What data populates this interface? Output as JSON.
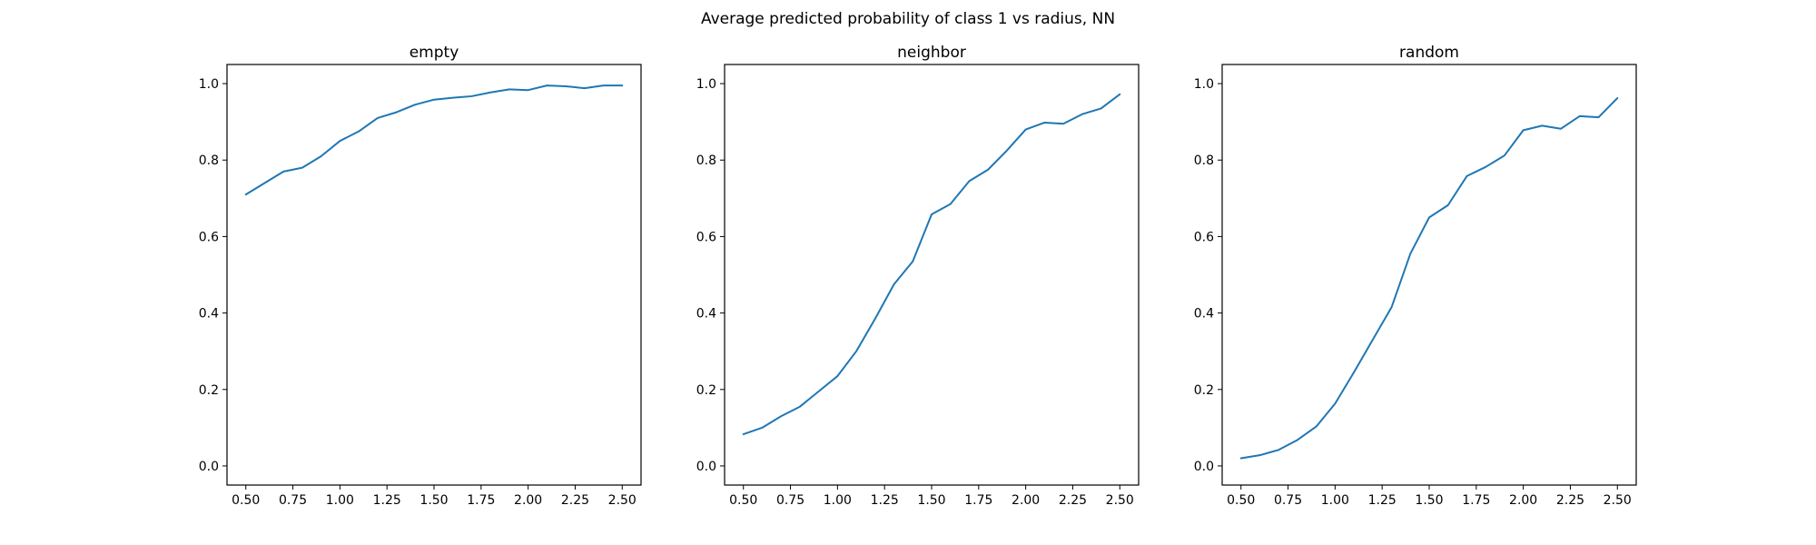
{
  "figure": {
    "suptitle": "Average predicted probability of class 1 vs radius, NN"
  },
  "colors": {
    "series": "#1f77b4",
    "axes": "#000000",
    "background": "#ffffff"
  },
  "chart_data": [
    {
      "type": "line",
      "title": "empty",
      "xlabel": "",
      "ylabel": "",
      "xlim": [
        0.4,
        2.6
      ],
      "ylim": [
        -0.05,
        1.05
      ],
      "xticks": [
        "0.50",
        "0.75",
        "1.00",
        "1.25",
        "1.50",
        "1.75",
        "2.00",
        "2.25",
        "2.50"
      ],
      "yticks": [
        "0.0",
        "0.2",
        "0.4",
        "0.6",
        "0.8",
        "1.0"
      ],
      "grid": false,
      "x": [
        0.5,
        0.6,
        0.7,
        0.8,
        0.9,
        1.0,
        1.1,
        1.2,
        1.3,
        1.4,
        1.5,
        1.6,
        1.7,
        1.8,
        1.9,
        2.0,
        2.1,
        2.2,
        2.3,
        2.4,
        2.5
      ],
      "series": [
        {
          "values": [
            0.71,
            0.74,
            0.77,
            0.78,
            0.81,
            0.85,
            0.875,
            0.91,
            0.925,
            0.945,
            0.958,
            0.963,
            0.967,
            0.977,
            0.985,
            0.983,
            0.995,
            0.993,
            0.988,
            0.995,
            0.995
          ]
        }
      ]
    },
    {
      "type": "line",
      "title": "neighbor",
      "xlabel": "",
      "ylabel": "",
      "xlim": [
        0.4,
        2.6
      ],
      "ylim": [
        -0.05,
        1.05
      ],
      "xticks": [
        "0.50",
        "0.75",
        "1.00",
        "1.25",
        "1.50",
        "1.75",
        "2.00",
        "2.25",
        "2.50"
      ],
      "yticks": [
        "0.0",
        "0.2",
        "0.4",
        "0.6",
        "0.8",
        "1.0"
      ],
      "grid": false,
      "x": [
        0.5,
        0.6,
        0.7,
        0.8,
        0.9,
        1.0,
        1.1,
        1.2,
        1.3,
        1.4,
        1.5,
        1.6,
        1.7,
        1.8,
        1.9,
        2.0,
        2.1,
        2.2,
        2.3,
        2.4,
        2.5
      ],
      "series": [
        {
          "values": [
            0.083,
            0.1,
            0.13,
            0.155,
            0.195,
            0.235,
            0.3,
            0.385,
            0.475,
            0.535,
            0.658,
            0.685,
            0.745,
            0.775,
            0.825,
            0.88,
            0.898,
            0.895,
            0.92,
            0.935,
            0.972
          ]
        }
      ]
    },
    {
      "type": "line",
      "title": "random",
      "xlabel": "",
      "ylabel": "",
      "xlim": [
        0.4,
        2.6
      ],
      "ylim": [
        -0.05,
        1.05
      ],
      "xticks": [
        "0.50",
        "0.75",
        "1.00",
        "1.25",
        "1.50",
        "1.75",
        "2.00",
        "2.25",
        "2.50"
      ],
      "yticks": [
        "0.0",
        "0.2",
        "0.4",
        "0.6",
        "0.8",
        "1.0"
      ],
      "grid": false,
      "x": [
        0.5,
        0.6,
        0.7,
        0.8,
        0.9,
        1.0,
        1.1,
        1.2,
        1.3,
        1.4,
        1.5,
        1.6,
        1.7,
        1.8,
        1.9,
        2.0,
        2.1,
        2.2,
        2.3,
        2.4,
        2.5
      ],
      "series": [
        {
          "values": [
            0.02,
            0.028,
            0.042,
            0.068,
            0.103,
            0.163,
            0.245,
            0.33,
            0.415,
            0.555,
            0.65,
            0.682,
            0.758,
            0.782,
            0.812,
            0.878,
            0.89,
            0.882,
            0.915,
            0.912,
            0.962
          ]
        }
      ]
    }
  ]
}
